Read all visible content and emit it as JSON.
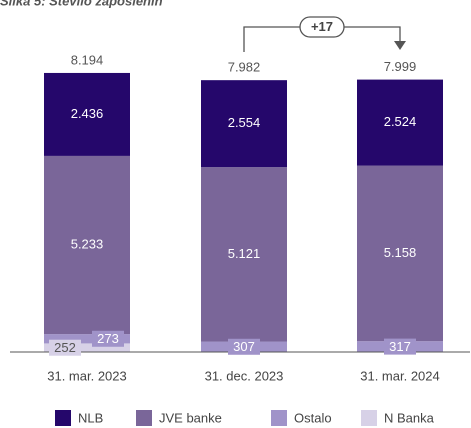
{
  "chart_data": {
    "type": "stacked_bar",
    "title": "Slika 5: Število zaposlenih",
    "categories": [
      "31. mar. 2023",
      "31. dec. 2023",
      "31. mar. 2024"
    ],
    "series": [
      {
        "name": "NLB",
        "color": "#25076b",
        "values": [
          2436,
          2554,
          2524
        ],
        "value_labels": [
          "2.436",
          "2.554",
          "2.524"
        ]
      },
      {
        "name": "JVE banke",
        "color": "#7a6699",
        "values": [
          5233,
          5121,
          5158
        ],
        "value_labels": [
          "5.233",
          "5.121",
          "5.158"
        ]
      },
      {
        "name": "Ostalo",
        "color": "#a093c9",
        "values": [
          273,
          307,
          317
        ],
        "value_labels": [
          "273",
          "307",
          "317"
        ]
      },
      {
        "name": "N Banka",
        "color": "#d7d1e7",
        "values": [
          252,
          null,
          null
        ],
        "value_labels": [
          "252",
          null,
          null
        ]
      }
    ],
    "totals": {
      "values": [
        8194,
        7982,
        7999
      ],
      "value_labels": [
        "8.194",
        "7.982",
        "7.999"
      ]
    },
    "annotation": "+17",
    "ylim": [
      0,
      9000
    ]
  }
}
